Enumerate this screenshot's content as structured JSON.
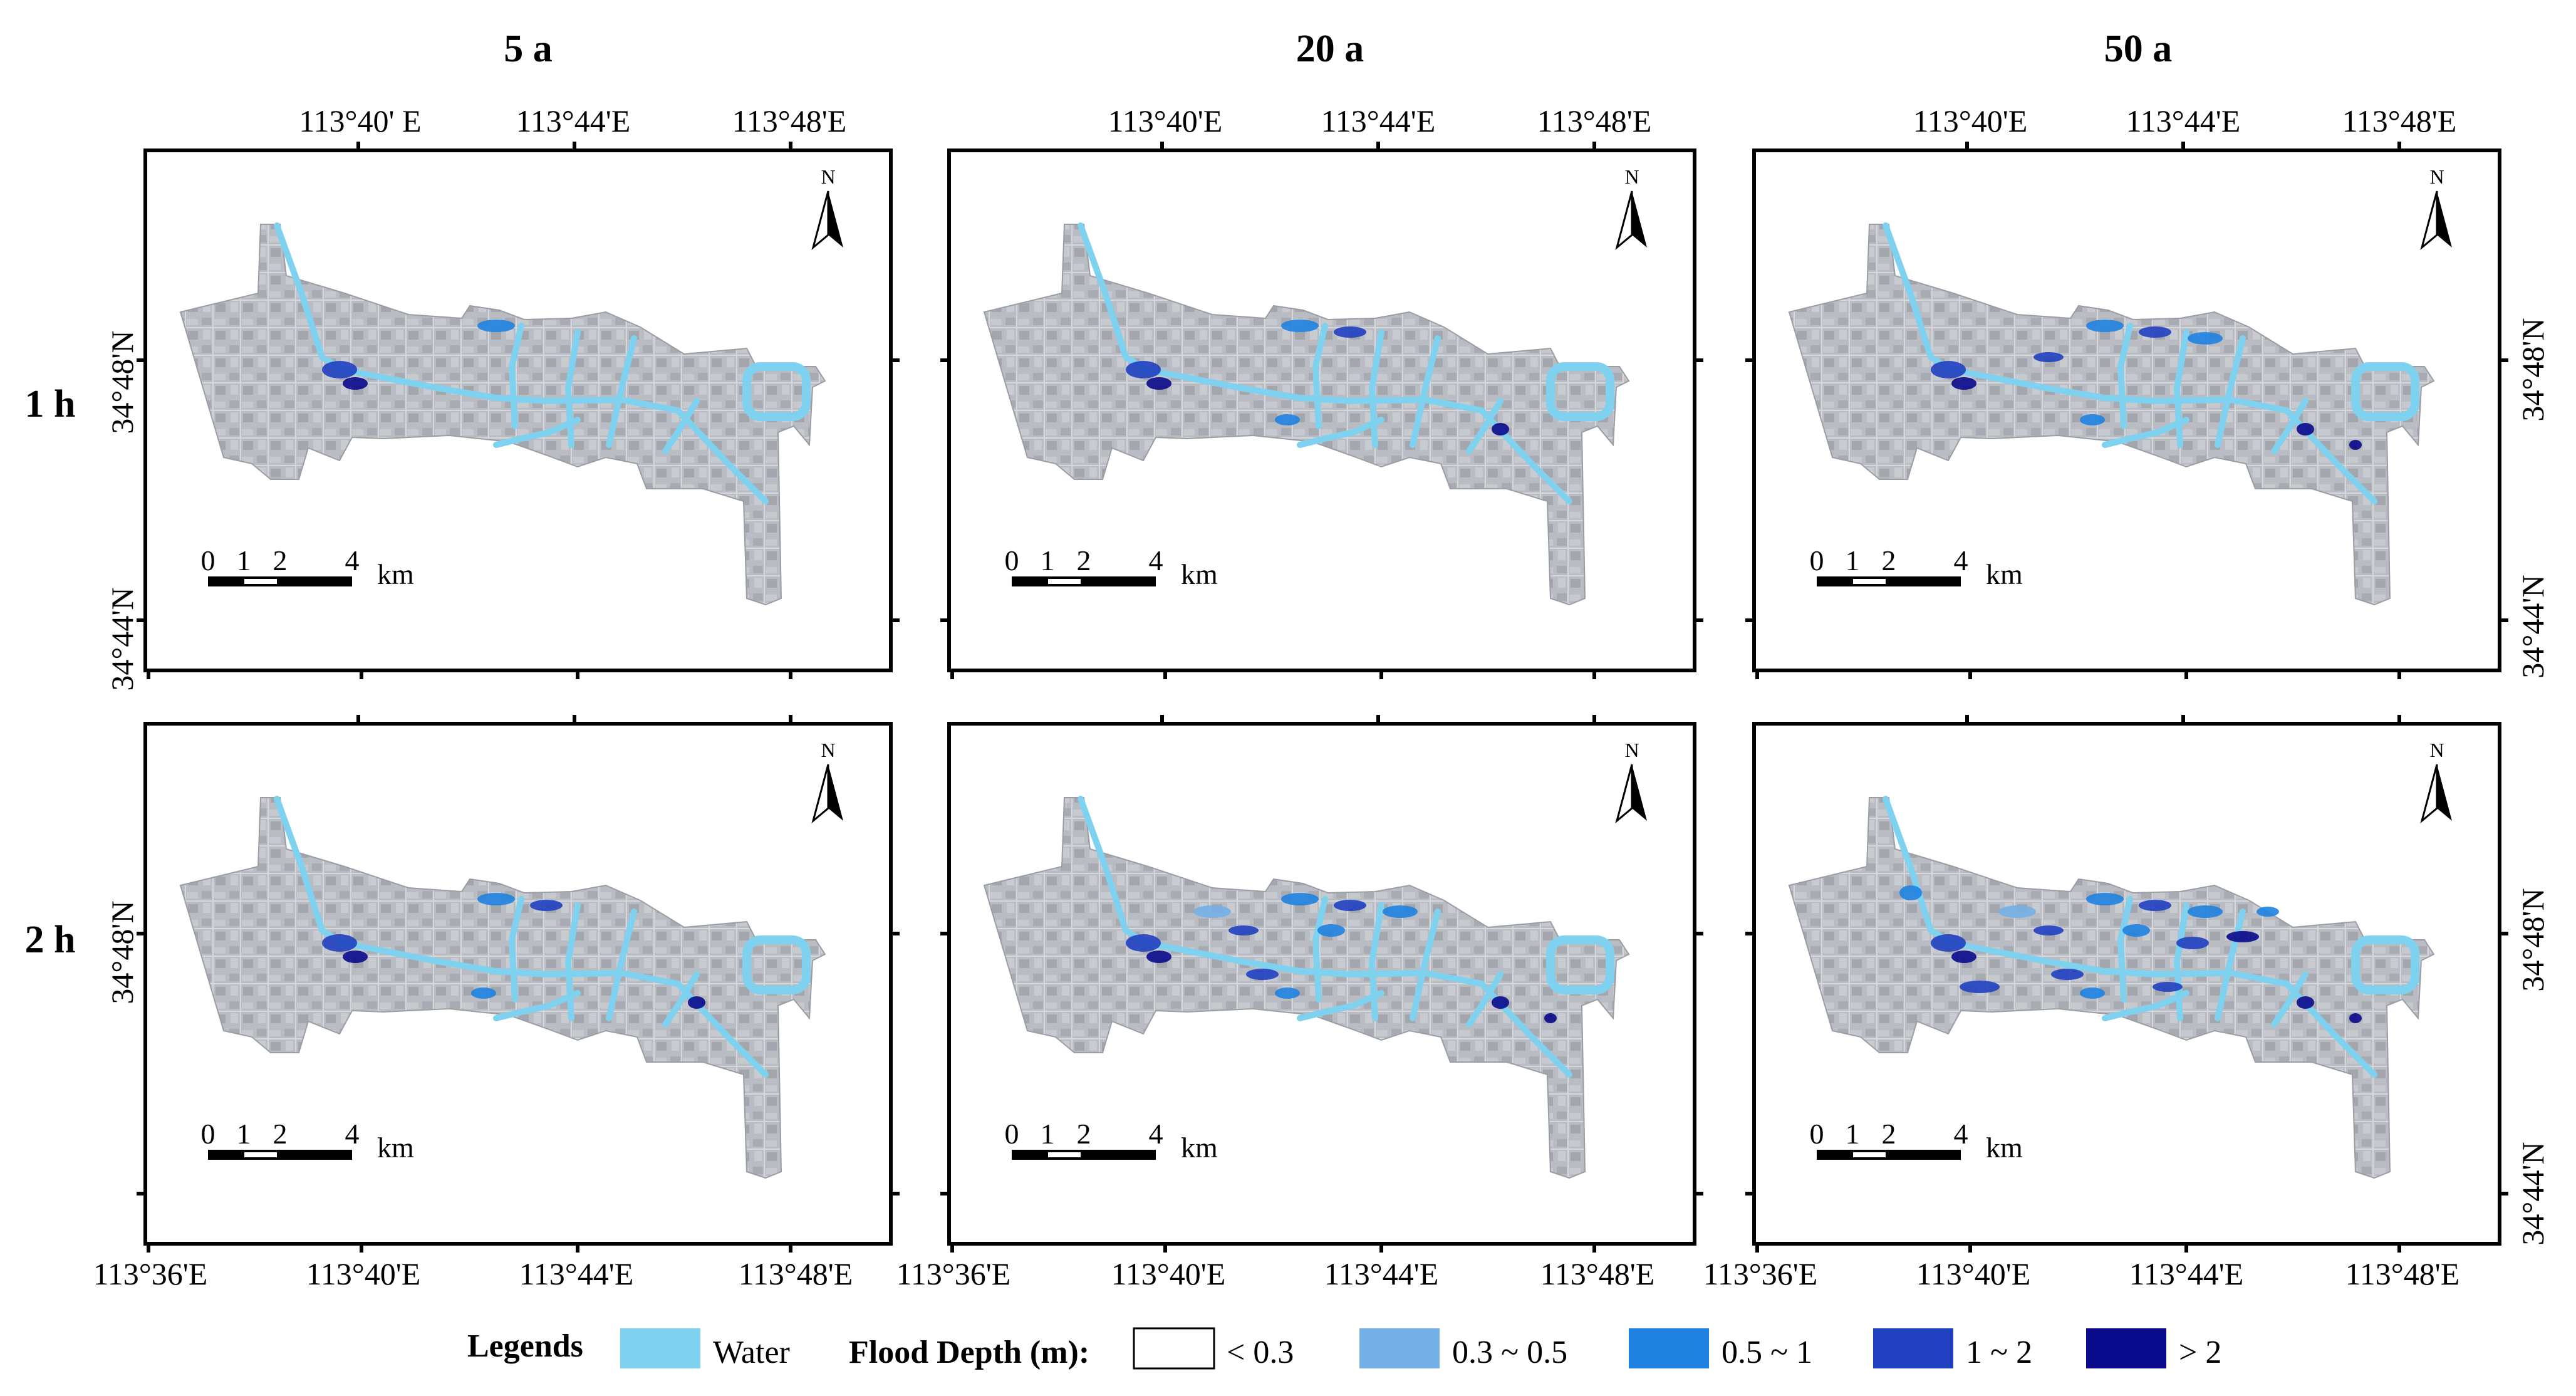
{
  "column_titles": [
    "5 a",
    "20 a",
    "50 a"
  ],
  "row_titles": [
    "1 h",
    "2 h"
  ],
  "top_lon_labels": [
    [
      "113°40' E",
      "113°44'E",
      "113°48'E"
    ],
    [
      "113°40'E",
      "113°44'E",
      "113°48'E"
    ],
    [
      "113°40'E",
      "113°44'E",
      "113°48'E"
    ]
  ],
  "bottom_lon_labels": [
    [
      "113°36'E",
      "113°40'E",
      "113°44'E",
      "113°48'E"
    ],
    [
      "113°36'E",
      "113°40'E",
      "113°44'E",
      "113°48'E"
    ],
    [
      "113°36'E",
      "113°40'E",
      "113°44'E",
      "113°48'E"
    ]
  ],
  "lat_labels": [
    "34°48'N",
    "34°44'N"
  ],
  "north_label": "N",
  "scale_bar": {
    "ticks": [
      "0",
      "1",
      "2",
      "4"
    ],
    "unit": "km"
  },
  "legend": {
    "title": "Legends",
    "water_label": "Water",
    "depth_title": "Flood Depth (m):",
    "classes": [
      {
        "label": "< 0.3",
        "color": "#ffffff"
      },
      {
        "label": "0.3 ~ 0.5",
        "color": "#74b0e6"
      },
      {
        "label": "0.5 ~ 1",
        "color": "#1f82e0"
      },
      {
        "label": "1 ~ 2",
        "color": "#2040c0"
      },
      {
        "label": "> 2",
        "color": "#0a0a8c"
      }
    ],
    "water_color": "#7ed2f0"
  },
  "colors": {
    "basemap": "#b9bcc2",
    "basemap_dark": "#9ea2a8"
  },
  "flood_intensity": [
    [
      1,
      2,
      3
    ],
    [
      2,
      4,
      6
    ]
  ]
}
